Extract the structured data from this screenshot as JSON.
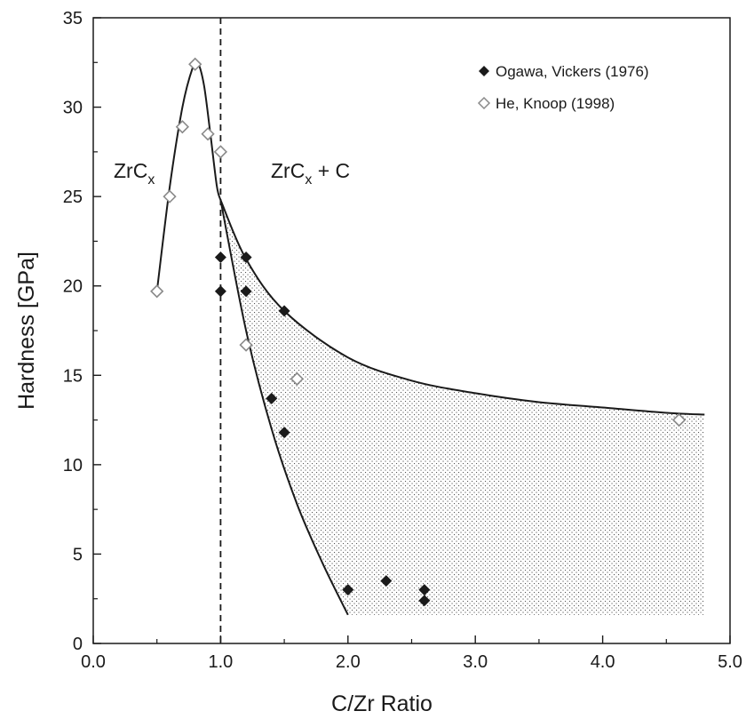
{
  "chart_data": {
    "type": "scatter",
    "xlabel": "C/Zr Ratio",
    "ylabel": "Hardness [GPa]",
    "xlim": [
      0,
      5
    ],
    "ylim": [
      0,
      35
    ],
    "xticks": [
      "0.0",
      "1.0",
      "2.0",
      "3.0",
      "4.0",
      "5.0"
    ],
    "yticks": [
      "0",
      "5",
      "10",
      "15",
      "20",
      "25",
      "30",
      "35"
    ],
    "grid": false,
    "legend_position": "top-right",
    "series": [
      {
        "name": "Ogawa, Vickers (1976)",
        "marker": "filled-diamond",
        "color": "#1a1a1a",
        "x": [
          1.0,
          1.0,
          1.2,
          1.2,
          1.5,
          1.4,
          1.5,
          2.0,
          2.3,
          2.6,
          2.6
        ],
        "y": [
          21.6,
          19.7,
          21.6,
          19.7,
          18.6,
          13.7,
          11.8,
          3.0,
          3.5,
          3.0,
          2.4
        ]
      },
      {
        "name": "He, Knoop (1998)",
        "marker": "open-diamond",
        "color": "#8a8a8a",
        "x": [
          0.5,
          0.6,
          0.7,
          0.8,
          0.9,
          1.0,
          1.2,
          1.6,
          4.6
        ],
        "y": [
          19.7,
          25.0,
          28.9,
          32.4,
          28.5,
          27.5,
          16.7,
          14.8,
          12.5
        ]
      }
    ],
    "curves": {
      "peak": {
        "x": [
          0.5,
          0.6,
          0.7,
          0.78,
          0.82,
          0.87,
          0.92,
          0.97,
          1.0
        ],
        "y": [
          19.7,
          25.5,
          30.0,
          32.2,
          32.5,
          31.2,
          28.5,
          25.6,
          24.8
        ]
      },
      "upper": {
        "x": [
          1.0,
          1.2,
          1.5,
          2.0,
          2.5,
          3.0,
          3.5,
          4.0,
          4.5,
          4.8
        ],
        "y": [
          24.8,
          21.5,
          18.6,
          16.0,
          14.7,
          14.0,
          13.5,
          13.2,
          12.9,
          12.8
        ]
      },
      "lower": {
        "x": [
          1.0,
          1.2,
          1.4,
          1.6,
          1.8,
          2.0
        ],
        "y": [
          24.8,
          17.5,
          12.0,
          7.8,
          4.5,
          1.6
        ]
      }
    },
    "shaded_region": {
      "x_end": 4.8,
      "y_floor": 1.6
    },
    "vline": {
      "x": 1.0,
      "style": "dashed"
    },
    "annotations": {
      "left": {
        "main": "ZrC",
        "sub": "x"
      },
      "right": {
        "main": "ZrC",
        "sub": "x",
        "suffix": " + C"
      }
    }
  }
}
